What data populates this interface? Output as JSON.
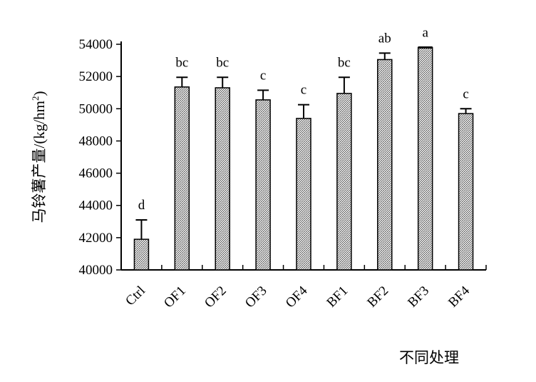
{
  "chart_data": {
    "type": "bar",
    "title": "",
    "xlabel": "不同处理",
    "ylabel": "马铃薯产量/(kg/hm²)",
    "ylabel_main": "马铃薯产量/(kg/hm",
    "ylabel_sup": "2",
    "ylabel_close": ")",
    "ylim": [
      40000,
      54000
    ],
    "yticks": [
      40000,
      42000,
      44000,
      46000,
      48000,
      50000,
      52000,
      54000
    ],
    "ytick_labels": [
      "40000",
      "42000",
      "44000",
      "46000",
      "48000",
      "50000",
      "52000",
      "54000"
    ],
    "categories": [
      "Ctrl",
      "OF1",
      "OF2",
      "OF3",
      "OF4",
      "BF1",
      "BF2",
      "BF3",
      "BF4"
    ],
    "values": [
      41900,
      51350,
      51300,
      50550,
      49400,
      50950,
      53050,
      53800,
      49700
    ],
    "errors": [
      1200,
      600,
      650,
      600,
      850,
      1000,
      400,
      0,
      300
    ],
    "significance": [
      "d",
      "bc",
      "bc",
      "c",
      "c",
      "bc",
      "ab",
      "a",
      "c"
    ],
    "grid": false,
    "legend": "none",
    "colors": {
      "bar_fill": "#b8b8b8",
      "bar_stroke": "#000000",
      "axis": "#000000"
    }
  }
}
